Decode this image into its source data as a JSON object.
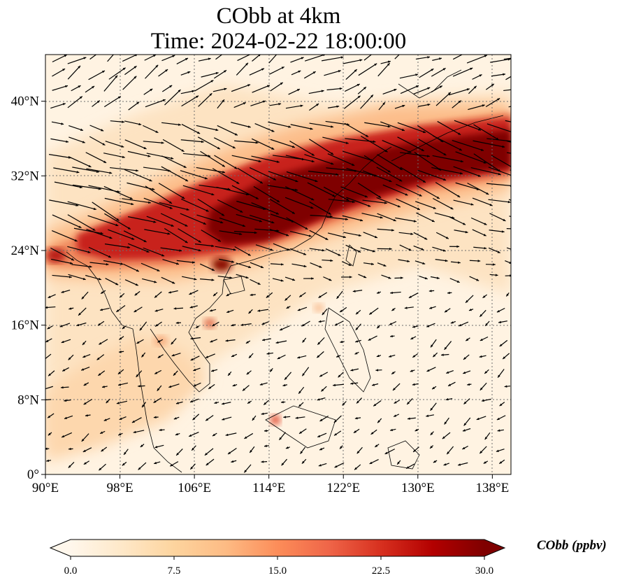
{
  "figure": {
    "title_line1": "CObb at 4km",
    "title_line2": "Time: 2024-02-22 18:00:00"
  },
  "map": {
    "lon_range": [
      90,
      140
    ],
    "lat_range": [
      0,
      45
    ],
    "lon_ticks": [
      {
        "value": 90,
        "label": "90°E"
      },
      {
        "value": 98,
        "label": "98°E"
      },
      {
        "value": 106,
        "label": "106°E"
      },
      {
        "value": 114,
        "label": "114°E"
      },
      {
        "value": 122,
        "label": "122°E"
      },
      {
        "value": 130,
        "label": "130°E"
      },
      {
        "value": 138,
        "label": "138°E"
      }
    ],
    "lat_ticks": [
      {
        "value": 0,
        "label": "0°"
      },
      {
        "value": 8,
        "label": "8°N"
      },
      {
        "value": 16,
        "label": "16°N"
      },
      {
        "value": 24,
        "label": "24°N"
      },
      {
        "value": 32,
        "label": "32°N"
      },
      {
        "value": 40,
        "label": "40°N"
      }
    ],
    "gridlines": "dotted",
    "colormap": "OrRd",
    "plume_color": "#7f0000",
    "background_color": "#fff5e6"
  },
  "colorbar": {
    "label": "CObb (ppbv)",
    "range": [
      0,
      30
    ],
    "extend": "both",
    "ticks": [
      {
        "value": 0,
        "label": "0.0"
      },
      {
        "value": 7.5,
        "label": "7.5"
      },
      {
        "value": 15,
        "label": "15.0"
      },
      {
        "value": 22.5,
        "label": "22.5"
      },
      {
        "value": 30,
        "label": "30.0"
      }
    ],
    "colors": [
      "#fff7ec",
      "#fee8c8",
      "#fdd49e",
      "#fdbb84",
      "#fc8d59",
      "#ef6548",
      "#d7301f",
      "#b30000",
      "#7f0000"
    ]
  }
}
